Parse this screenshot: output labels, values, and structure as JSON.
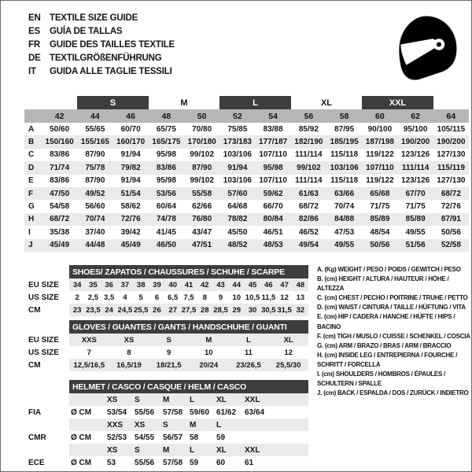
{
  "page": {
    "languages": [
      {
        "code": "EN",
        "title": "TEXTILE SIZE GUIDE"
      },
      {
        "code": "ES",
        "title": "GUÍA DE TALLAS"
      },
      {
        "code": "FR",
        "title": "GUIDE DES TAILLES TEXTILE"
      },
      {
        "code": "DE",
        "title": "TEXTILGRÖßENFÜHRUNG"
      },
      {
        "code": "IT",
        "title": "GUIDA ALLE TAGLIE TESSILI"
      }
    ],
    "icon": "full-face-helmet"
  },
  "colors": {
    "dark_bar": "#3d3d3d",
    "number_row": "#b6b6b6",
    "stripe": "#eaeaea",
    "text": "#141414"
  },
  "main_table": {
    "group_header": [
      {
        "label": "",
        "span": 2,
        "style": "blank"
      },
      {
        "label": "S",
        "span": 2,
        "style": "dark"
      },
      {
        "label": "M",
        "span": 2,
        "style": "plain"
      },
      {
        "label": "L",
        "span": 2,
        "style": "dark"
      },
      {
        "label": "XL",
        "span": 2,
        "style": "plain"
      },
      {
        "label": "XXL",
        "span": 2,
        "style": "dark"
      },
      {
        "label": "",
        "span": 1,
        "style": "blank"
      }
    ],
    "columns": [
      "42",
      "44",
      "46",
      "48",
      "50",
      "52",
      "54",
      "56",
      "58",
      "60",
      "62",
      "64"
    ],
    "rows": [
      {
        "letter": "A",
        "shaded": false,
        "values": [
          "50/60",
          "55/65",
          "60/70",
          "65/75",
          "70/80",
          "75/85",
          "83/88",
          "85/92",
          "87/95",
          "90/100",
          "95/100",
          "105/115"
        ]
      },
      {
        "letter": "B",
        "shaded": true,
        "values": [
          "150/160",
          "155/165",
          "160/170",
          "165/175",
          "170/180",
          "173/183",
          "177/187",
          "182/190",
          "185/195",
          "187/198",
          "190/200",
          "190/200"
        ]
      },
      {
        "letter": "C",
        "shaded": false,
        "values": [
          "83/86",
          "87/90",
          "91/94",
          "95/98",
          "99/102",
          "103/106",
          "107/110",
          "111/114",
          "115/118",
          "119/122",
          "123/126",
          "127/130"
        ]
      },
      {
        "letter": "D",
        "shaded": true,
        "values": [
          "71/74",
          "75/78",
          "79/82",
          "83/86",
          "87/90",
          "91/94",
          "95/98",
          "99/102",
          "103/106",
          "107/110",
          "111/114",
          "115/119"
        ]
      },
      {
        "letter": "E",
        "shaded": false,
        "values": [
          "83/86",
          "87/90",
          "91/94",
          "95/98",
          "99/102",
          "103/106",
          "107/110",
          "111/114",
          "115/118",
          "119/122",
          "123/126",
          "127/130"
        ]
      },
      {
        "letter": "F",
        "shaded": true,
        "values": [
          "47/50",
          "49/52",
          "51/54",
          "53/56",
          "55/58",
          "57/60",
          "59/62",
          "61/63",
          "63/66",
          "65/68",
          "67/70",
          "68/72"
        ]
      },
      {
        "letter": "G",
        "shaded": false,
        "values": [
          "54/58",
          "56/60",
          "58/62",
          "60/64",
          "62/66",
          "64/68",
          "66/70",
          "68/72",
          "70/74",
          "71/75",
          "71/75",
          "72/76"
        ]
      },
      {
        "letter": "H",
        "shaded": true,
        "values": [
          "68/72",
          "70/74",
          "72/76",
          "74/78",
          "76/80",
          "78/82",
          "80/84",
          "82/86",
          "84/88",
          "85/89",
          "85/89",
          "87/91"
        ]
      },
      {
        "letter": "I",
        "shaded": false,
        "values": [
          "35/38",
          "37/40",
          "39/42",
          "41/45",
          "43/47",
          "45/50",
          "46/51",
          "46/52",
          "47/53",
          "48/54",
          "49/55",
          "50/56"
        ]
      },
      {
        "letter": "J",
        "shaded": true,
        "values": [
          "45/49",
          "44/48",
          "45/49",
          "46/50",
          "47/51",
          "48/52",
          "48/53",
          "49/54",
          "49/55",
          "50/56",
          "51/56",
          "52/58"
        ]
      }
    ]
  },
  "shoes_table": {
    "title": "SHOES/ ZAPATOS / CHAUSSURES / SCHUHE / SCARPE",
    "rows": [
      {
        "label": "EU SIZE",
        "shaded": true,
        "values": [
          "34",
          "35",
          "36",
          "37",
          "38",
          "39",
          "40",
          "41",
          "42",
          "43",
          "44",
          "45",
          "46",
          "47",
          "48"
        ]
      },
      {
        "label": "US SIZE",
        "shaded": false,
        "values": [
          "2",
          "2,5",
          "3,5",
          "4",
          "5",
          "6",
          "6,5",
          "7,5",
          "8",
          "9",
          "10",
          "10,5",
          "11,5",
          "12",
          "13"
        ]
      },
      {
        "label": "CM",
        "shaded": true,
        "values": [
          "23",
          "23,5",
          "24",
          "24,5",
          "25,5",
          "26",
          "27",
          "27,5",
          "28",
          "28,5",
          "29",
          "30",
          "30,5",
          "31,5",
          "32"
        ]
      }
    ]
  },
  "gloves_table": {
    "title": "GLOVES / GUANTES / GANTS / HANDSCHUHE / GUANTI",
    "rows": [
      {
        "label": "EU SIZE",
        "shaded": true,
        "values": [
          "XXS",
          "XS",
          "S",
          "M",
          "L",
          "XL"
        ]
      },
      {
        "label": "US SIZE",
        "shaded": false,
        "values": [
          "7",
          "8",
          "9",
          "10",
          "11",
          "12"
        ]
      },
      {
        "label": "CM",
        "shaded": true,
        "values": [
          "12,5/16,5",
          "16,5/19",
          "18/21,5",
          "20/24",
          "23/26,5",
          "25,5/30"
        ]
      }
    ]
  },
  "helmet_table": {
    "title": "HELMET / CASCO / CASQUE / HELM / CASCO",
    "groups": [
      {
        "label": "FIA",
        "unit": "Ø CM",
        "sizes": [
          "XS",
          "S",
          "M",
          "L",
          "XL",
          "XXL"
        ],
        "values": [
          "53/54",
          "55/56",
          "57/58",
          "59/60",
          "61/62",
          "63/64"
        ]
      },
      {
        "label": "CMR",
        "unit": "Ø CM",
        "sizes": [
          "XXS",
          "XS",
          "S",
          "M",
          "L",
          ""
        ],
        "values": [
          "52/53",
          "54/55",
          "56/57",
          "58",
          "59",
          ""
        ]
      },
      {
        "label": "ECE",
        "unit": "Ø CM",
        "sizes": [
          "XS",
          "S",
          "M",
          "L",
          "XL",
          "XXL"
        ],
        "values": [
          "53",
          "55/56",
          "57/58",
          "59",
          "60",
          "61"
        ]
      }
    ]
  },
  "legend": {
    "items": [
      "A. (Kg) WEIGHT / PESO / POIDS / GEWITCH / PESO",
      "B. (cm) HEIGHT / ALTURA / HAUTEUR / HÖHE / ALTEZZA",
      "C. (cm) CHEST / PECHO / POITRINE / TRUHE / PETTO",
      "D. (cm) WAIST / CINTURA / TAILLE / HÜFTUNG / VITA",
      "E. (cm) HIP / CADERA / HANCHE / HÜFTE / HIPS / BACINO",
      "F. (cm) TIGH / MUSLO / CUISSE / SCHENKEL / COSCIA",
      "G. (cm) ARM / BRAZO / BRAS / ARM / BRACCIO",
      "H. (cm) INSIDE LEG / ENTREPIERNA / FOURCHE / SCHRITT / FORCELLA",
      "I. (cm) SHOULDERS / HOMBROS / ÉPAULES / SCHULTERN / SPALLE",
      "J. (cm) BACK / ESPALDA / DOS / ZURÜCK / INDIETRO"
    ]
  }
}
